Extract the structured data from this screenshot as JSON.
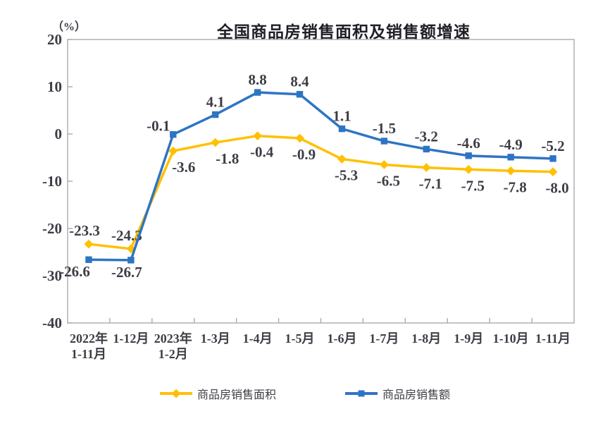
{
  "title": "全国商品房销售面积及销售额增速",
  "colors": {
    "axis": "#ABABAB",
    "text": "#3D3D46",
    "series_area": "#FFC000",
    "series_value": "#2E74C4"
  },
  "chart_data": {
    "type": "line",
    "title": "全国商品房销售面积及销售额增速",
    "xlabel": "",
    "ylabel": "（%）",
    "ylim": [
      -40,
      20
    ],
    "y_ticks": [
      20,
      10,
      0,
      -10,
      -20,
      -30,
      -40
    ],
    "grid": false,
    "legend_position": "bottom",
    "data_labels": true,
    "categories": [
      "2022年\n1-11月",
      "1-12月",
      "2023年\n1-2月",
      "1-3月",
      "1-4月",
      "1-5月",
      "1-6月",
      "1-7月",
      "1-8月",
      "1-9月",
      "1-10月",
      "1-11月"
    ],
    "series": [
      {
        "name": "商品房销售面积",
        "marker": "diamond",
        "color": "#FFC000",
        "values": [
          -23.3,
          -24.3,
          -3.6,
          -1.8,
          -0.4,
          -0.9,
          -5.3,
          -6.5,
          -7.1,
          -7.5,
          -7.8,
          -8.0
        ]
      },
      {
        "name": "商品房销售额",
        "marker": "square",
        "color": "#2E74C4",
        "values": [
          -26.6,
          -26.7,
          -0.1,
          4.1,
          8.8,
          8.4,
          1.1,
          -1.5,
          -3.2,
          -4.6,
          -4.9,
          -5.2
        ]
      }
    ]
  }
}
